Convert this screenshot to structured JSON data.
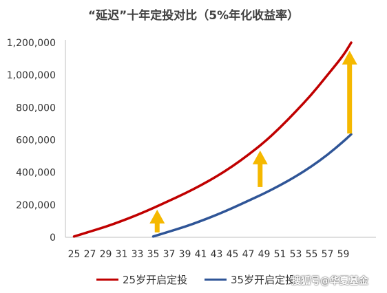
{
  "chart_data": {
    "type": "line",
    "title": "“延迟”十年定投对比（5%年化收益率）",
    "xlabel": "",
    "ylabel": "",
    "x_ticks": [
      "25",
      "27",
      "29",
      "31",
      "33",
      "35",
      "37",
      "39",
      "41",
      "43",
      "45",
      "47",
      "49",
      "51",
      "53",
      "55",
      "57",
      "59"
    ],
    "y_ticks": [
      "0",
      "200,000",
      "400,000",
      "600,000",
      "800,000",
      "1,000,000",
      "1,200,000"
    ],
    "ylim": [
      0,
      1200000
    ],
    "xlim": [
      25,
      60
    ],
    "grid": false,
    "legend_position": "bottom",
    "series": [
      {
        "name": "25岁开启定投",
        "color": "#c00000",
        "x": [
          25,
          27,
          29,
          31,
          33,
          35,
          37,
          39,
          41,
          43,
          45,
          47,
          49,
          51,
          53,
          55,
          57,
          59,
          60
        ],
        "values": [
          5000,
          35000,
          65000,
          100000,
          138000,
          180000,
          225000,
          270000,
          320000,
          375000,
          437000,
          508000,
          585000,
          675000,
          775000,
          880000,
          1000000,
          1120000,
          1200000
        ]
      },
      {
        "name": "35岁开启定投",
        "color": "#2f5597",
        "x": [
          35,
          37,
          39,
          41,
          43,
          45,
          47,
          49,
          51,
          53,
          55,
          57,
          59,
          60
        ],
        "values": [
          5000,
          35000,
          65000,
          100000,
          138000,
          180000,
          225000,
          270000,
          320000,
          375000,
          437000,
          508000,
          590000,
          635000
        ]
      }
    ],
    "annotations": [
      {
        "type": "arrow",
        "color": "#f5b800",
        "x": 35.5,
        "from": 30000,
        "to": 170000
      },
      {
        "type": "arrow",
        "color": "#f5b800",
        "x": 48.5,
        "from": 310000,
        "to": 535000
      },
      {
        "type": "arrow",
        "color": "#f5b800",
        "x": 59.8,
        "from": 640000,
        "to": 1150000
      }
    ]
  },
  "watermark": "搜狐号@华夏基金"
}
